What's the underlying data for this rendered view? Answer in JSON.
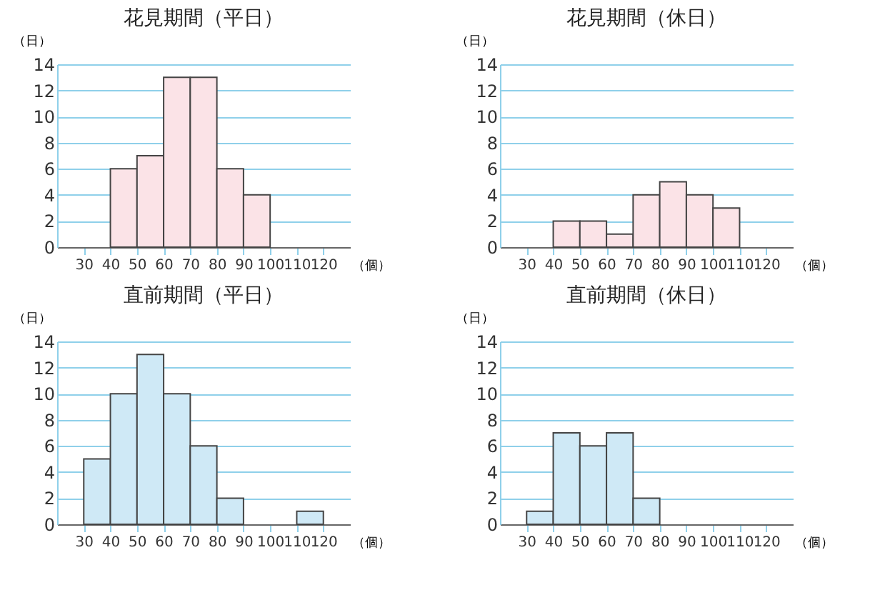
{
  "chart_data": [
    {
      "type": "histogram",
      "title": "花見期間（平日）",
      "xlabel": "（個）",
      "ylabel": "（日）",
      "bins": [
        40,
        50,
        60,
        70,
        80,
        90,
        100
      ],
      "values": [
        6,
        7,
        13,
        13,
        6,
        4
      ],
      "color": "#fbe3e7",
      "xlim": [
        20,
        130
      ],
      "xticks": [
        30,
        40,
        50,
        60,
        70,
        80,
        90,
        100,
        110,
        120
      ],
      "ylim": [
        0,
        14
      ],
      "yticks": [
        0,
        2,
        4,
        6,
        8,
        10,
        12,
        14
      ],
      "grid": "y"
    },
    {
      "type": "histogram",
      "title": "花見期間（休日）",
      "xlabel": "（個）",
      "ylabel": "（日）",
      "bins": [
        40,
        50,
        60,
        70,
        80,
        90,
        100,
        110
      ],
      "values": [
        2,
        2,
        1,
        4,
        5,
        4,
        3
      ],
      "color": "#fbe3e7",
      "xlim": [
        20,
        130
      ],
      "xticks": [
        30,
        40,
        50,
        60,
        70,
        80,
        90,
        100,
        110,
        120
      ],
      "ylim": [
        0,
        14
      ],
      "yticks": [
        0,
        2,
        4,
        6,
        8,
        10,
        12,
        14
      ],
      "grid": "y"
    },
    {
      "type": "histogram",
      "title": "直前期間（平日）",
      "xlabel": "（個）",
      "ylabel": "（日）",
      "bins": [
        30,
        40,
        50,
        60,
        70,
        80,
        90,
        100,
        110,
        120
      ],
      "values": [
        5,
        10,
        13,
        10,
        6,
        2,
        0,
        0,
        1
      ],
      "color": "#cfe9f6",
      "xlim": [
        20,
        130
      ],
      "xticks": [
        30,
        40,
        50,
        60,
        70,
        80,
        90,
        100,
        110,
        120
      ],
      "ylim": [
        0,
        14
      ],
      "yticks": [
        0,
        2,
        4,
        6,
        8,
        10,
        12,
        14
      ],
      "grid": "y"
    },
    {
      "type": "histogram",
      "title": "直前期間（休日）",
      "xlabel": "（個）",
      "ylabel": "（日）",
      "bins": [
        30,
        40,
        50,
        60,
        70,
        80
      ],
      "values": [
        1,
        7,
        6,
        7,
        2
      ],
      "color": "#cfe9f6",
      "xlim": [
        20,
        130
      ],
      "xticks": [
        30,
        40,
        50,
        60,
        70,
        80,
        90,
        100,
        110,
        120
      ],
      "ylim": [
        0,
        14
      ],
      "yticks": [
        0,
        2,
        4,
        6,
        8,
        10,
        12,
        14
      ],
      "grid": "y"
    }
  ]
}
